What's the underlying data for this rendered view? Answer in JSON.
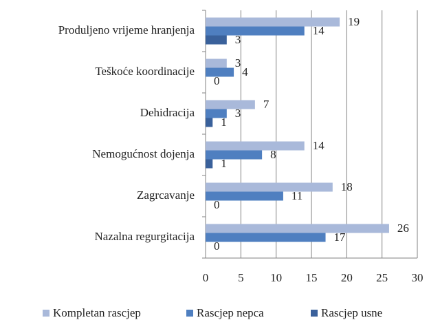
{
  "chart_data": {
    "type": "barh",
    "categories": [
      "Produljeno vrijeme hranjenja",
      "Teškoće koordinacije",
      "Dehidracija",
      "Nemogućnost dojenja",
      "Zagrcavanje",
      "Nazalna regurgitacija"
    ],
    "series": [
      {
        "name": "Kompletan rascjep",
        "color": "#a9b9da",
        "values": [
          19,
          3,
          7,
          14,
          18,
          26
        ]
      },
      {
        "name": "Rascjep nepca",
        "color": "#4f7fc0",
        "values": [
          14,
          4,
          3,
          8,
          11,
          17
        ]
      },
      {
        "name": "Rascjep usne",
        "color": "#3a619b",
        "values": [
          3,
          0,
          1,
          1,
          0,
          0
        ]
      }
    ],
    "xlim": [
      0,
      30
    ],
    "xticks": [
      0,
      5,
      10,
      15,
      20,
      25,
      30
    ],
    "grid": true,
    "legend": "bottom"
  }
}
